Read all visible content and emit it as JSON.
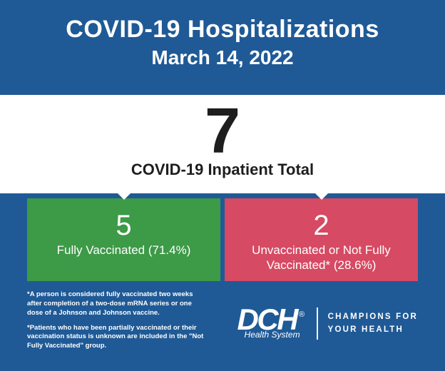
{
  "theme": {
    "bg": "#1f5a96",
    "white": "#ffffff",
    "dark_text": "#1e1e1e"
  },
  "header": {
    "title": "COVID-19 Hospitalizations",
    "subtitle": "March 14, 2022"
  },
  "total": {
    "number": "7",
    "label": "COVID-19 Inpatient Total"
  },
  "boxes": [
    {
      "color": "#3d9a47",
      "number": "5",
      "label": "Fully Vaccinated (71.4%)"
    },
    {
      "color": "#d64a63",
      "number": "2",
      "label": "Unvaccinated or Not Fully Vaccinated* (28.6%)"
    }
  ],
  "footnotes": {
    "note1": "*A person is considered fully vaccinated two weeks after completion of a two-dose mRNA series or one dose of a Johnson and Johnson vaccine.",
    "note2": "*Patients who have been partially vaccinated or their vaccination status is unknown are included in the \"Not Fully Vaccinated\" group."
  },
  "logo": {
    "main": "DCH",
    "reg": "®",
    "sub": "Health System",
    "tag_line1": "CHAMPIONS FOR",
    "tag_line2": "YOUR HEALTH"
  }
}
